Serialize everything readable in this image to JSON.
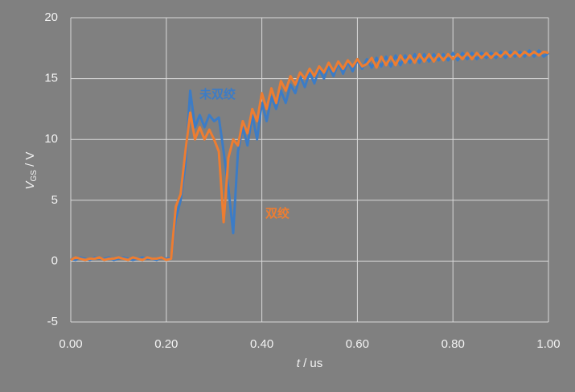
{
  "chart_data": {
    "type": "line",
    "x_label": [
      "t",
      " / us"
    ],
    "y_label": [
      "V",
      "GS",
      " / V"
    ],
    "xlim": [
      0,
      1
    ],
    "ylim": [
      -5,
      20
    ],
    "xticks": [
      {
        "value": 0,
        "label": "0.00"
      },
      {
        "value": 0.2,
        "label": "0.20"
      },
      {
        "value": 0.4,
        "label": "0.40"
      },
      {
        "value": 0.6,
        "label": "0.60"
      },
      {
        "value": 0.8,
        "label": "0.80"
      },
      {
        "value": 1,
        "label": "1.00"
      }
    ],
    "yticks": [
      -5,
      0,
      5,
      10,
      15,
      20
    ],
    "grid": true,
    "x": [
      0,
      0.01,
      0.02,
      0.03,
      0.04,
      0.05,
      0.06,
      0.07,
      0.08,
      0.09,
      0.1,
      0.11,
      0.12,
      0.13,
      0.14,
      0.15,
      0.16,
      0.17,
      0.18,
      0.19,
      0.2,
      0.21,
      0.22,
      0.23,
      0.24,
      0.25,
      0.26,
      0.27,
      0.28,
      0.29,
      0.3,
      0.31,
      0.32,
      0.33,
      0.34,
      0.35,
      0.36,
      0.37,
      0.38,
      0.39,
      0.4,
      0.41,
      0.42,
      0.43,
      0.44,
      0.45,
      0.46,
      0.47,
      0.48,
      0.49,
      0.5,
      0.51,
      0.52,
      0.53,
      0.54,
      0.55,
      0.56,
      0.57,
      0.58,
      0.59,
      0.6,
      0.61,
      0.62,
      0.63,
      0.64,
      0.65,
      0.66,
      0.67,
      0.68,
      0.69,
      0.7,
      0.71,
      0.72,
      0.73,
      0.74,
      0.75,
      0.76,
      0.77,
      0.78,
      0.79,
      0.8,
      0.81,
      0.82,
      0.83,
      0.84,
      0.85,
      0.86,
      0.87,
      0.88,
      0.89,
      0.9,
      0.91,
      0.92,
      0.93,
      0.94,
      0.95,
      0.96,
      0.97,
      0.98,
      0.99,
      1
    ],
    "series": [
      {
        "name": "未双绞",
        "color": "#3c7cc6",
        "values": [
          0.2,
          0.1,
          0.3,
          0.2,
          0.1,
          0.3,
          0.2,
          0.2,
          0.3,
          0.1,
          0.2,
          0.3,
          0.2,
          0.1,
          0.2,
          0.3,
          0.2,
          0.2,
          0.1,
          0.3,
          0.2,
          0.3,
          3.5,
          5.0,
          8,
          14.0,
          11,
          12,
          11,
          12,
          11.5,
          11.8,
          9,
          6,
          2.3,
          9,
          11,
          9.5,
          12,
          10,
          13,
          11.5,
          13.5,
          12.5,
          14,
          13,
          14.5,
          13.8,
          15.2,
          14.3,
          15.5,
          14.6,
          15.8,
          15,
          16,
          15.2,
          16.3,
          15.4,
          16.4,
          15.6,
          16.5,
          15.8,
          16.6,
          15.9,
          16.7,
          16,
          16.8,
          16,
          16.9,
          16.1,
          16.9,
          16.3,
          17,
          16.3,
          17,
          16.4,
          17,
          16.5,
          17,
          16.5,
          17.1,
          16.5,
          17.1,
          16.6,
          17.1,
          16.6,
          17.1,
          16.7,
          17.1,
          16.7,
          17.2,
          16.7,
          17.2,
          16.8,
          17.2,
          16.8,
          17.3,
          16.8,
          17.3,
          16.8,
          17.1
        ]
      },
      {
        "name": "双绞",
        "color": "#ed7d31",
        "values": [
          0.1,
          0.3,
          0.2,
          0.1,
          0.2,
          0.2,
          0.3,
          0.1,
          0.2,
          0.2,
          0.3,
          0.2,
          0.1,
          0.3,
          0.2,
          0.1,
          0.3,
          0.2,
          0.2,
          0.3,
          0.1,
          0.2,
          4.5,
          5.5,
          9,
          12.2,
          10,
          11,
          10,
          10.8,
          10,
          9,
          3.2,
          8.5,
          10,
          9.5,
          11.5,
          10.5,
          12.5,
          11.5,
          13.8,
          12.5,
          14.2,
          13,
          14.8,
          14,
          15.2,
          14.5,
          15.5,
          15,
          15.8,
          15.2,
          16,
          15.5,
          16.3,
          15.6,
          16.4,
          15.8,
          16.5,
          16,
          16.6,
          16,
          16.2,
          16.7,
          15.9,
          16.8,
          16.1,
          16.8,
          16.1,
          16.9,
          16.3,
          16.9,
          16.3,
          17,
          16.4,
          17,
          16.4,
          17,
          16.5,
          17,
          16.6,
          17,
          16.6,
          17.1,
          16.6,
          17.1,
          16.7,
          17.1,
          16.7,
          17.1,
          16.8,
          17.2,
          16.8,
          17.2,
          16.8,
          17.2,
          16.9,
          17.2,
          16.9,
          17.2,
          17.1
        ]
      }
    ]
  }
}
